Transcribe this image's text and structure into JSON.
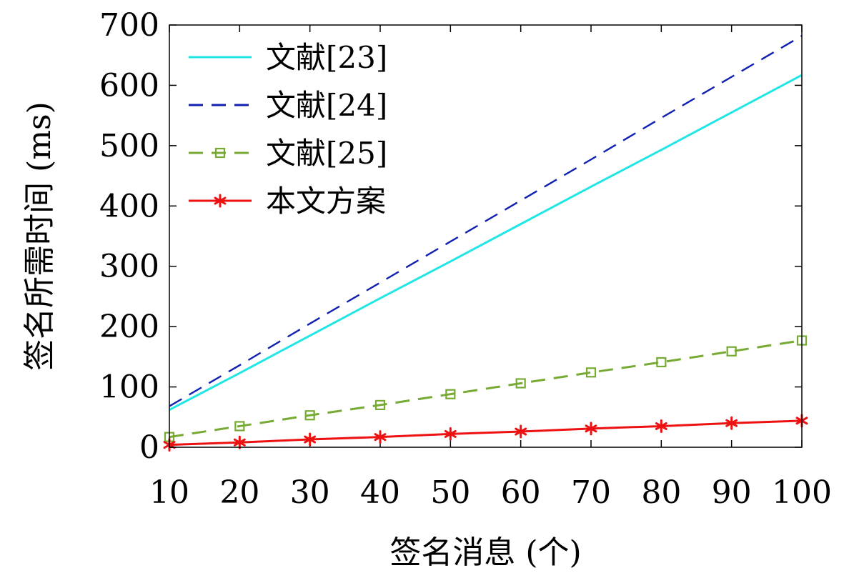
{
  "chart_data": {
    "type": "line",
    "xlabel": "签名消息 (个)",
    "ylabel": "签名所需时间 (ms)",
    "xlim": [
      10,
      100
    ],
    "ylim": [
      0,
      700
    ],
    "xticks": [
      10,
      20,
      30,
      40,
      50,
      60,
      70,
      80,
      90,
      100
    ],
    "yticks": [
      0,
      100,
      200,
      300,
      400,
      500,
      600,
      700
    ],
    "grid": false,
    "legend_position": "top-left",
    "x": [
      10,
      20,
      30,
      40,
      50,
      60,
      70,
      80,
      90,
      100
    ],
    "series": [
      {
        "name": "文献[23]",
        "color": "#22e6e6",
        "line_style": "solid",
        "marker": "none",
        "values": [
          62,
          123,
          185,
          247,
          308,
          370,
          432,
          493,
          555,
          617
        ]
      },
      {
        "name": "文献[24]",
        "color": "#1020b0",
        "line_style": "dashed",
        "marker": "none",
        "values": [
          68,
          136,
          205,
          273,
          341,
          409,
          477,
          546,
          614,
          682
        ]
      },
      {
        "name": "文献[25]",
        "color": "#77aa33",
        "line_style": "dashed",
        "marker": "square",
        "values": [
          17,
          35,
          53,
          70,
          88,
          106,
          124,
          141,
          159,
          177
        ]
      },
      {
        "name": "本文方案",
        "color": "#ee1111",
        "line_style": "solid",
        "marker": "asterisk",
        "values": [
          4,
          8,
          13,
          17,
          22,
          26,
          31,
          35,
          40,
          44
        ]
      }
    ]
  }
}
